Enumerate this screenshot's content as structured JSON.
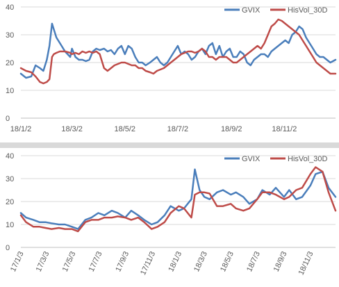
{
  "chart_data": [
    {
      "type": "line",
      "title": "",
      "xlabel": "",
      "ylabel": "",
      "ylim": [
        0,
        40
      ],
      "yticks": [
        0,
        10,
        20,
        30,
        40
      ],
      "xlim": [
        "18/1/2",
        "18/12/31"
      ],
      "xticks": [
        "18/1/2",
        "18/3/2",
        "18/5/2",
        "18/7/2",
        "18/9/2",
        "18/11/2"
      ],
      "grid": true,
      "legend": "top-right",
      "series": [
        {
          "name": "GVIX",
          "color": "#4a7ebb",
          "x": [
            "18/1/2",
            "18/1/8",
            "18/1/14",
            "18/1/19",
            "18/1/24",
            "18/1/28",
            "18/2/1",
            "18/2/4",
            "18/2/7",
            "18/2/9",
            "18/2/12",
            "18/2/16",
            "18/2/22",
            "18/2/28",
            "18/3/2",
            "18/3/6",
            "18/3/10",
            "18/3/14",
            "18/3/18",
            "18/3/22",
            "18/3/26",
            "18/3/30",
            "18/4/3",
            "18/4/8",
            "18/4/12",
            "18/4/16",
            "18/4/20",
            "18/4/24",
            "18/4/28",
            "18/5/2",
            "18/5/6",
            "18/5/10",
            "18/5/14",
            "18/5/18",
            "18/5/22",
            "18/5/26",
            "18/5/31",
            "18/6/4",
            "18/6/8",
            "18/6/12",
            "18/6/16",
            "18/6/20",
            "18/6/24",
            "18/6/28",
            "18/7/2",
            "18/7/6",
            "18/7/10",
            "18/7/14",
            "18/7/18",
            "18/7/22",
            "18/7/26",
            "18/7/30",
            "18/8/3",
            "18/8/7",
            "18/8/11",
            "18/8/15",
            "18/8/19",
            "18/8/23",
            "18/8/27",
            "18/8/31",
            "18/9/4",
            "18/9/8",
            "18/9/12",
            "18/9/16",
            "18/9/20",
            "18/9/24",
            "18/9/28",
            "18/10/2",
            "18/10/6",
            "18/10/10",
            "18/10/14",
            "18/10/18",
            "18/10/22",
            "18/10/26",
            "18/10/30",
            "18/11/3",
            "18/11/7",
            "18/11/11",
            "18/11/15",
            "18/11/19",
            "18/11/23",
            "18/11/27",
            "18/12/1",
            "18/12/5",
            "18/12/9",
            "18/12/13",
            "18/12/17",
            "18/12/21",
            "18/12/25",
            "18/12/31"
          ],
          "values": [
            16,
            14.5,
            15,
            19,
            18,
            17,
            21,
            26,
            34,
            32,
            29,
            27,
            24,
            22,
            25,
            22,
            21,
            21,
            20.5,
            21,
            24,
            25,
            24.5,
            25,
            24,
            24.5,
            23,
            25,
            26,
            23,
            26,
            25,
            22,
            20,
            20,
            19,
            20,
            21,
            22,
            20,
            19,
            20,
            22,
            24,
            26,
            23,
            24,
            23,
            21,
            22,
            24,
            25,
            23,
            26,
            27,
            23,
            26,
            22,
            24,
            25,
            22,
            22,
            24,
            23,
            20,
            19,
            21,
            22,
            23,
            23,
            22,
            24,
            25,
            26,
            27,
            28,
            27,
            30,
            31,
            33,
            32,
            29,
            27,
            25,
            23,
            22,
            22,
            21,
            20,
            21
          ]
        },
        {
          "name": "HisVol_30D",
          "color": "#be4b48",
          "x": [
            "18/1/2",
            "18/1/8",
            "18/1/14",
            "18/1/19",
            "18/1/24",
            "18/1/28",
            "18/2/1",
            "18/2/4",
            "18/2/7",
            "18/2/9",
            "18/2/12",
            "18/2/16",
            "18/2/22",
            "18/2/28",
            "18/3/2",
            "18/3/6",
            "18/3/10",
            "18/3/14",
            "18/3/18",
            "18/3/22",
            "18/3/26",
            "18/3/30",
            "18/4/3",
            "18/4/8",
            "18/4/12",
            "18/4/16",
            "18/4/20",
            "18/4/24",
            "18/4/28",
            "18/5/2",
            "18/5/6",
            "18/5/10",
            "18/5/14",
            "18/5/18",
            "18/5/22",
            "18/5/26",
            "18/5/31",
            "18/6/4",
            "18/6/8",
            "18/6/12",
            "18/6/16",
            "18/6/20",
            "18/6/24",
            "18/6/28",
            "18/7/2",
            "18/7/6",
            "18/7/10",
            "18/7/14",
            "18/7/18",
            "18/7/22",
            "18/7/26",
            "18/7/30",
            "18/8/3",
            "18/8/7",
            "18/8/11",
            "18/8/15",
            "18/8/19",
            "18/8/23",
            "18/8/27",
            "18/8/31",
            "18/9/4",
            "18/9/8",
            "18/9/12",
            "18/9/16",
            "18/9/20",
            "18/9/24",
            "18/9/28",
            "18/10/2",
            "18/10/6",
            "18/10/10",
            "18/10/14",
            "18/10/18",
            "18/10/22",
            "18/10/26",
            "18/10/30",
            "18/11/3",
            "18/11/7",
            "18/11/11",
            "18/11/15",
            "18/11/19",
            "18/11/23",
            "18/11/27",
            "18/12/1",
            "18/12/5",
            "18/12/9",
            "18/12/13",
            "18/12/17",
            "18/12/21",
            "18/12/25",
            "18/12/31"
          ],
          "values": [
            18,
            17,
            16.5,
            15,
            13,
            12.5,
            13,
            14,
            22,
            23,
            23.5,
            24,
            24,
            23.5,
            23,
            23.5,
            23,
            24,
            23.5,
            24,
            23.5,
            24,
            23,
            18,
            17,
            18,
            19,
            19.5,
            20,
            20,
            19.5,
            19,
            19,
            18,
            18,
            17,
            16.5,
            16,
            17,
            17.5,
            18,
            19,
            20,
            21,
            22,
            23,
            23.5,
            24,
            24,
            23.5,
            24,
            25,
            24,
            22,
            22,
            21,
            22,
            22,
            22,
            21,
            20,
            20,
            21,
            22,
            23,
            24,
            25,
            26,
            25,
            27,
            30,
            33,
            34,
            35.5,
            35,
            34,
            33,
            32,
            31,
            30,
            28,
            26,
            24,
            22,
            20,
            19,
            18,
            17,
            16,
            16
          ]
        }
      ]
    },
    {
      "type": "line",
      "title": "",
      "xlabel": "",
      "ylabel": "",
      "ylim": [
        0,
        40
      ],
      "yticks": [
        0,
        10,
        20,
        30,
        40
      ],
      "xlim": [
        "17/1/3",
        "18/12/31"
      ],
      "xticks": [
        "17/1/3",
        "17/3/3",
        "17/5/3",
        "17/7/3",
        "17/9/3",
        "17/11/3",
        "18/1/3",
        "18/3/3",
        "18/5/3",
        "18/7/3",
        "18/9/3",
        "18/11/3"
      ],
      "grid": true,
      "legend": "top-right",
      "series": [
        {
          "name": "GVIX",
          "color": "#4a7ebb",
          "x": [
            "17/1/3",
            "17/1/15",
            "17/2/1",
            "17/2/15",
            "17/3/1",
            "17/3/15",
            "17/4/1",
            "17/4/15",
            "17/5/1",
            "17/5/15",
            "17/6/1",
            "17/6/15",
            "17/7/1",
            "17/7/15",
            "17/8/1",
            "17/8/15",
            "17/9/1",
            "17/9/15",
            "17/10/1",
            "17/10/15",
            "17/11/1",
            "17/11/15",
            "17/12/1",
            "17/12/15",
            "18/1/3",
            "18/1/15",
            "18/2/1",
            "18/2/9",
            "18/2/20",
            "18/3/3",
            "18/3/15",
            "18/4/1",
            "18/4/15",
            "18/5/3",
            "18/5/15",
            "18/6/1",
            "18/6/15",
            "18/7/3",
            "18/7/15",
            "18/8/1",
            "18/8/15",
            "18/9/3",
            "18/9/15",
            "18/10/1",
            "18/10/15",
            "18/11/3",
            "18/11/15",
            "18/12/1",
            "18/12/15",
            "18/12/31"
          ],
          "values": [
            15,
            13,
            12,
            11,
            11,
            10.5,
            10,
            10,
            9,
            8,
            12,
            13,
            15,
            14,
            16,
            15,
            13,
            16,
            14,
            12,
            10,
            11,
            14,
            18,
            16,
            17,
            21,
            34,
            25,
            22,
            21,
            24,
            25,
            23,
            24,
            22,
            19,
            21,
            25,
            23,
            26,
            22,
            25,
            21,
            22,
            27,
            32,
            33,
            26,
            22
          ]
        },
        {
          "name": "HisVol_30D",
          "color": "#be4b48",
          "x": [
            "17/1/3",
            "17/1/15",
            "17/2/1",
            "17/2/15",
            "17/3/1",
            "17/3/15",
            "17/4/1",
            "17/4/15",
            "17/5/1",
            "17/5/15",
            "17/6/1",
            "17/6/15",
            "17/7/1",
            "17/7/15",
            "17/8/1",
            "17/8/15",
            "17/9/1",
            "17/9/15",
            "17/10/1",
            "17/10/15",
            "17/11/1",
            "17/11/15",
            "17/12/1",
            "17/12/15",
            "18/1/3",
            "18/1/15",
            "18/2/1",
            "18/2/9",
            "18/2/20",
            "18/3/3",
            "18/3/15",
            "18/4/1",
            "18/4/15",
            "18/5/3",
            "18/5/15",
            "18/6/1",
            "18/6/15",
            "18/7/3",
            "18/7/15",
            "18/8/1",
            "18/8/15",
            "18/9/3",
            "18/9/15",
            "18/10/1",
            "18/10/15",
            "18/11/3",
            "18/11/15",
            "18/12/1",
            "18/12/15",
            "18/12/31"
          ],
          "values": [
            14,
            11,
            9,
            9,
            8.5,
            8,
            8.5,
            8,
            8,
            7,
            11,
            12,
            12,
            13,
            13,
            13.5,
            13,
            12,
            13,
            11,
            8,
            9,
            11,
            15,
            18,
            17,
            13,
            23,
            24,
            24,
            23.5,
            18,
            18,
            19,
            17,
            16,
            17,
            21,
            24,
            24,
            23,
            21,
            22,
            25,
            26,
            32,
            35,
            33,
            24,
            16
          ]
        }
      ]
    }
  ]
}
